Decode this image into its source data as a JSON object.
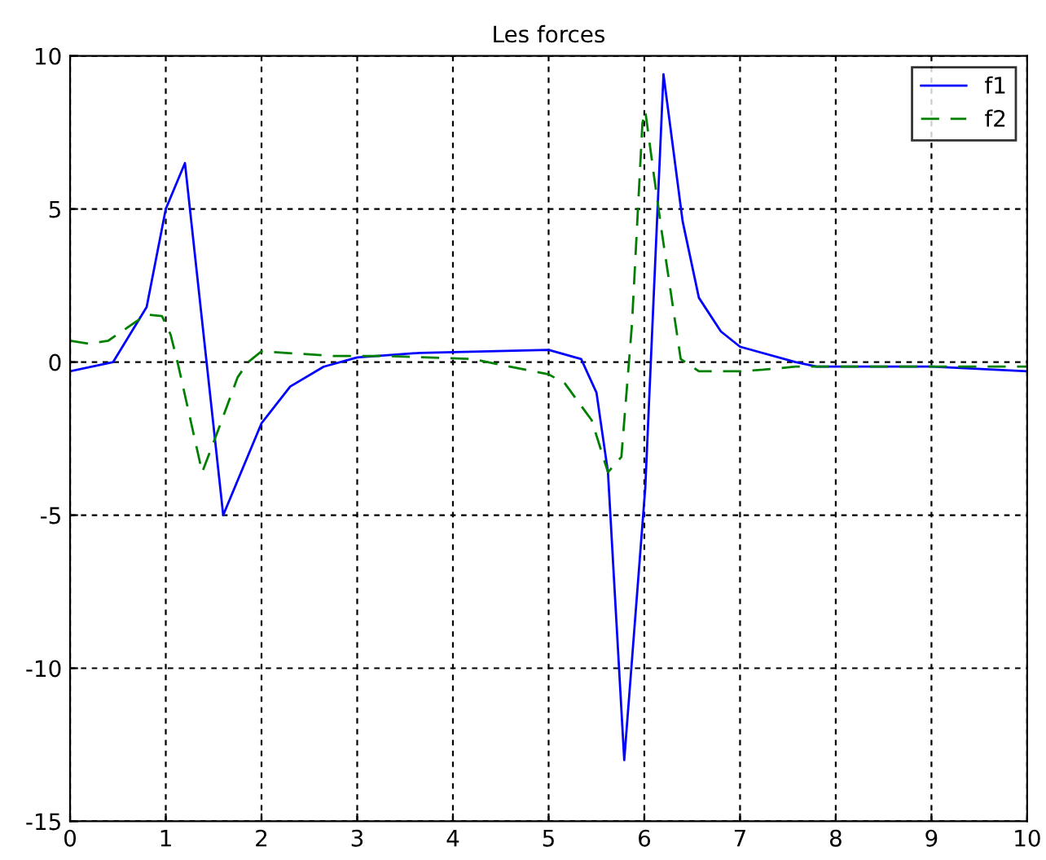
{
  "chart_data": {
    "type": "line",
    "title": "Les forces",
    "xlim": [
      0,
      10
    ],
    "ylim": [
      -15,
      10
    ],
    "xticks": [
      0,
      1,
      2,
      3,
      4,
      5,
      6,
      7,
      8,
      9,
      10
    ],
    "yticks": [
      -15,
      -10,
      -5,
      0,
      5,
      10
    ],
    "grid": true,
    "legend": "top right",
    "marker": "none",
    "series": [
      {
        "name": "f1",
        "color": "#0000ff",
        "line_style": "solid",
        "x": [
          0,
          0.45,
          0.8,
          1.0,
          1.2,
          1.6,
          2.0,
          2.3,
          2.65,
          3.0,
          3.65,
          5.0,
          5.34,
          5.5,
          5.62,
          5.79,
          6.01,
          6.2,
          6.4,
          6.57,
          6.8,
          7.0,
          7.58,
          7.8,
          9.0,
          10
        ],
        "values": [
          -0.3,
          0,
          1.8,
          5,
          6.5,
          -5,
          -2,
          -0.8,
          -0.15,
          0.15,
          0.3,
          0.4,
          0.1,
          -1.0,
          -3.6,
          -13.0,
          -4.1,
          9.4,
          4.6,
          2.1,
          1.0,
          0.5,
          0,
          -0.15,
          -0.15,
          -0.3
        ]
      },
      {
        "name": "f2",
        "color": "#008000",
        "line_style": "dashed",
        "x": [
          0,
          0.2,
          0.4,
          0.68,
          0.8,
          0.96,
          1.05,
          1.13,
          1.38,
          1.55,
          1.75,
          1.86,
          2.0,
          2.75,
          3.3,
          4.2,
          5.0,
          5.17,
          5.45,
          5.62,
          5.76,
          5.87,
          5.98,
          6.01,
          6.1,
          6.18,
          6.38,
          6.57,
          7.0,
          7.24,
          7.58,
          10
        ],
        "values": [
          0.7,
          0.6,
          0.7,
          1.3,
          1.55,
          1.5,
          0.9,
          -0.1,
          -3.6,
          -2.2,
          -0.5,
          0,
          0.35,
          0.2,
          0.2,
          0.1,
          -0.4,
          -0.7,
          -1.9,
          -3.6,
          -3.1,
          1.2,
          7.8,
          8.2,
          6.1,
          4.3,
          0.1,
          -0.3,
          -0.3,
          -0.25,
          -0.15,
          -0.15
        ]
      }
    ]
  }
}
